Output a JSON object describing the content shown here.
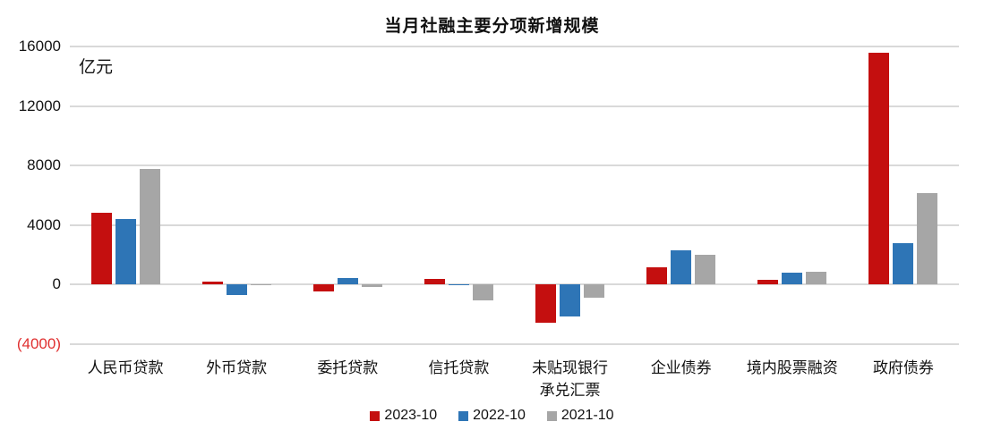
{
  "chart": {
    "title": "当月社融主要分项新增规模",
    "unit_label": "亿元"
  },
  "chart_data": {
    "type": "bar",
    "title": "当月社融主要分项新增规模",
    "ylabel": "亿元",
    "xlabel": "",
    "categories": [
      "人民币贷款",
      "外币贷款",
      "委托贷款",
      "信托贷款",
      "未贴现银行\n承兑汇票",
      "企业债券",
      "境内股票融资",
      "政府债券"
    ],
    "series": [
      {
        "name": "2023-10",
        "color": "#c40f0f",
        "values": [
          4837,
          205,
          -429,
          393,
          -2536,
          1144,
          321,
          15600
        ]
      },
      {
        "name": "2022-10",
        "color": "#2e75b6",
        "values": [
          4431,
          -724,
          470,
          -61,
          -2157,
          2325,
          788,
          2791
        ]
      },
      {
        "name": "2021-10",
        "color": "#a6a6a6",
        "values": [
          7752,
          -34,
          -173,
          -1061,
          -886,
          2030,
          846,
          6167
        ]
      }
    ],
    "ylim": [
      -4000,
      16000
    ],
    "y_ticks": [
      {
        "label": "16000",
        "value": 16000,
        "negative": false
      },
      {
        "label": "12000",
        "value": 12000,
        "negative": false
      },
      {
        "label": "8000",
        "value": 8000,
        "negative": false
      },
      {
        "label": "4000",
        "value": 4000,
        "negative": false
      },
      {
        "label": "0",
        "value": 0,
        "negative": false
      },
      {
        "label": "(4000)",
        "value": -4000,
        "negative": true
      }
    ],
    "grid": "horizontal",
    "legend_position": "bottom",
    "colors": {
      "grid": "#d9d9d9",
      "negative_tick": "#e03030",
      "series_red": "#c40f0f",
      "series_blue": "#2e75b6",
      "series_gray": "#a6a6a6"
    }
  }
}
